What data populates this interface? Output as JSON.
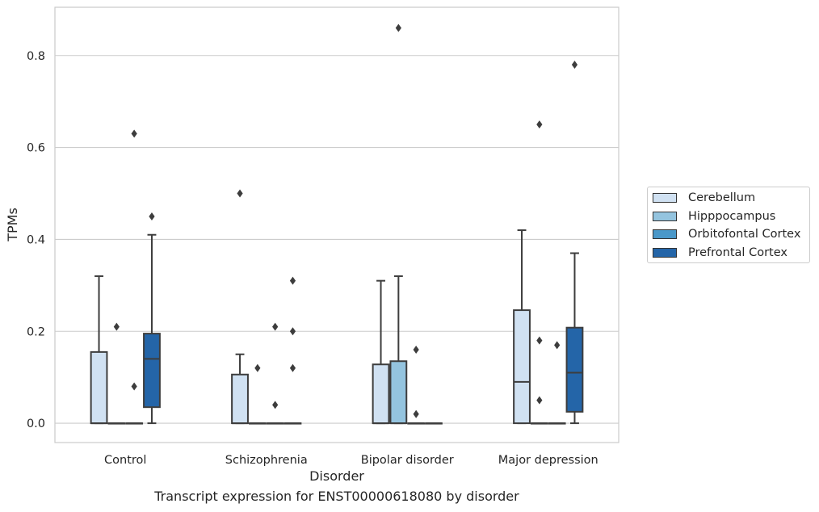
{
  "caption": "Transcript expression for ENST00000618080 by disorder",
  "chart_data": {
    "type": "box",
    "title": "",
    "xlabel": "Disorder",
    "ylabel": "TPMs",
    "ylim": [
      -0.042,
      0.905
    ],
    "yticks": [
      "0.0",
      "0.2",
      "0.4",
      "0.6",
      "0.8"
    ],
    "ytick_values": [
      0,
      0.2,
      0.4,
      0.6,
      0.8
    ],
    "grid": "horizontal",
    "legend_position": "right",
    "categories": [
      "Control",
      "Schizophrenia",
      "Bipolar disorder",
      "Major depression"
    ],
    "series": [
      {
        "name": "Cerebellum",
        "color": "#d0e1f2",
        "boxes": [
          {
            "q1": 0,
            "median": 0,
            "q3": 0.155,
            "whisker_low": 0,
            "whisker_high": 0.32,
            "outliers": []
          },
          {
            "q1": 0,
            "median": 0,
            "q3": 0.106,
            "whisker_low": 0,
            "whisker_high": 0.15,
            "outliers": [
              0.5
            ]
          },
          {
            "q1": 0,
            "median": 0,
            "q3": 0.128,
            "whisker_low": 0,
            "whisker_high": 0.31,
            "outliers": []
          },
          {
            "q1": 0,
            "median": 0.09,
            "q3": 0.246,
            "whisker_low": 0,
            "whisker_high": 0.42,
            "outliers": []
          }
        ]
      },
      {
        "name": "Hipppocampus",
        "color": "#94c4df",
        "boxes": [
          {
            "q1": 0,
            "median": 0,
            "q3": 0,
            "whisker_low": 0,
            "whisker_high": 0,
            "outliers": [
              0.21
            ]
          },
          {
            "q1": 0,
            "median": 0,
            "q3": 0,
            "whisker_low": 0,
            "whisker_high": 0,
            "outliers": [
              0.12
            ]
          },
          {
            "q1": 0,
            "median": 0,
            "q3": 0.135,
            "whisker_low": 0,
            "whisker_high": 0.32,
            "outliers": [
              0.86
            ]
          },
          {
            "q1": 0,
            "median": 0,
            "q3": 0,
            "whisker_low": 0,
            "whisker_high": 0,
            "outliers": [
              0.65,
              0.18,
              0.05
            ]
          }
        ]
      },
      {
        "name": "Orbitofontal Cortex",
        "color": "#4a98c9",
        "boxes": [
          {
            "q1": 0,
            "median": 0,
            "q3": 0,
            "whisker_low": 0,
            "whisker_high": 0,
            "outliers": [
              0.63,
              0.08
            ]
          },
          {
            "q1": 0,
            "median": 0,
            "q3": 0,
            "whisker_low": 0,
            "whisker_high": 0,
            "outliers": [
              0.21,
              0.04
            ]
          },
          {
            "q1": 0,
            "median": 0,
            "q3": 0,
            "whisker_low": 0,
            "whisker_high": 0,
            "outliers": [
              0.16,
              0.02
            ]
          },
          {
            "q1": 0,
            "median": 0,
            "q3": 0,
            "whisker_low": 0,
            "whisker_high": 0,
            "outliers": [
              0.17
            ]
          }
        ]
      },
      {
        "name": "Prefrontal Cortex",
        "color": "#2465a8",
        "boxes": [
          {
            "q1": 0.035,
            "median": 0.14,
            "q3": 0.195,
            "whisker_low": 0,
            "whisker_high": 0.41,
            "outliers": [
              0.45
            ]
          },
          {
            "q1": 0,
            "median": 0,
            "q3": 0,
            "whisker_low": 0,
            "whisker_high": 0,
            "outliers": [
              0.31,
              0.2,
              0.12
            ]
          },
          {
            "q1": 0,
            "median": 0,
            "q3": 0,
            "whisker_low": 0,
            "whisker_high": 0,
            "outliers": []
          },
          {
            "q1": 0.025,
            "median": 0.11,
            "q3": 0.208,
            "whisker_low": 0,
            "whisker_high": 0.37,
            "outliers": [
              0.78
            ]
          }
        ]
      }
    ]
  }
}
